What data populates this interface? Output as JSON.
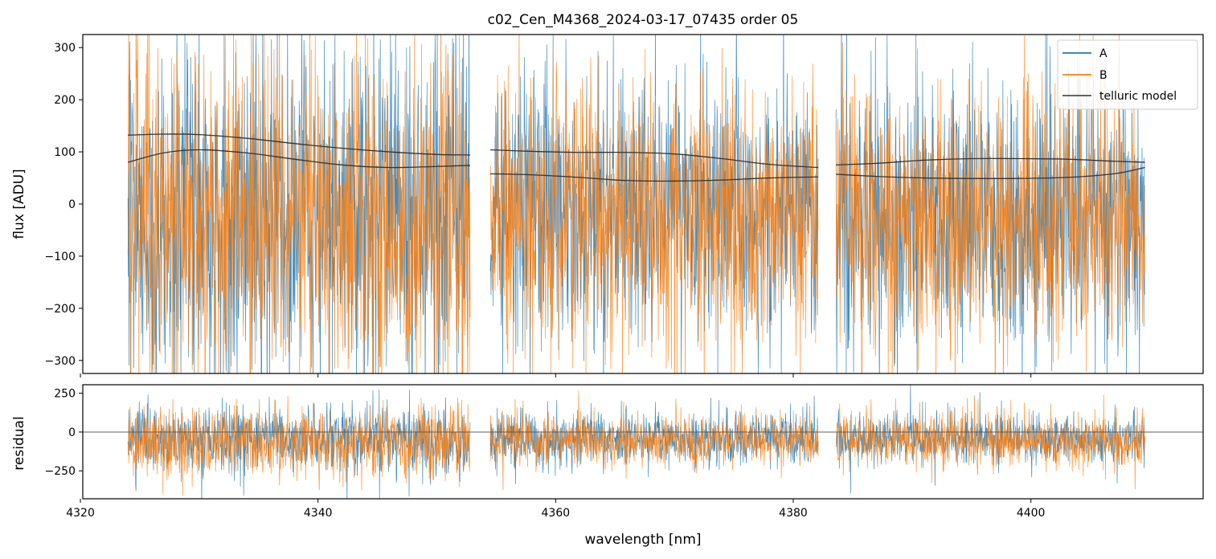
{
  "chart_data": [
    {
      "type": "line",
      "panel": "main",
      "title": "c02_Cen_M4368_2024-03-17_07435  order 05",
      "xlabel": "",
      "ylabel": "flux [ADU]",
      "xlim": [
        4320.2,
        4414.5
      ],
      "ylim": [
        -325,
        325
      ],
      "yticks": [
        -300,
        -200,
        -100,
        0,
        100,
        200,
        300
      ],
      "ytick_labels": [
        "−300",
        "−200",
        "−100",
        "0",
        "100",
        "200",
        "300"
      ],
      "xticks": [
        4320,
        4340,
        4360,
        4380,
        4400
      ],
      "segments": [
        {
          "x_start": 4324.0,
          "x_end": 4352.8
        },
        {
          "x_start": 4354.5,
          "x_end": 4382.1
        },
        {
          "x_start": 4383.6,
          "x_end": 4409.6
        }
      ],
      "series": [
        {
          "name": "A",
          "color": "#1f77b4",
          "kind": "noisy spectrum",
          "center": -20,
          "amplitude": 300
        },
        {
          "name": "B",
          "color": "#ff7f0e",
          "kind": "noisy spectrum",
          "center": -25,
          "amplitude": 290
        },
        {
          "name": "telluric model",
          "color": "#333333",
          "curves": [
            {
              "x": [
                4324.0,
                4327,
                4330,
                4334,
                4338,
                4342,
                4346,
                4350,
                4352.8
              ],
              "y": [
                132,
                134,
                133,
                126,
                116,
                107,
                100,
                95,
                94
              ]
            },
            {
              "x": [
                4324.0,
                4327,
                4330,
                4334,
                4338,
                4342,
                4346,
                4350,
                4352.8
              ],
              "y": [
                80,
                98,
                104,
                98,
                86,
                75,
                70,
                72,
                74
              ]
            },
            {
              "x": [
                4354.5,
                4358,
                4362,
                4366,
                4370,
                4374,
                4378,
                4382.1
              ],
              "y": [
                104,
                101,
                99,
                99,
                96,
                87,
                76,
                70
              ]
            },
            {
              "x": [
                4354.5,
                4358,
                4362,
                4366,
                4370,
                4374,
                4378,
                4382.1
              ],
              "y": [
                58,
                56,
                51,
                45,
                44,
                46,
                50,
                52
              ]
            },
            {
              "x": [
                4383.6,
                4387,
                4391,
                4395,
                4399,
                4403,
                4407,
                4409.6
              ],
              "y": [
                75,
                78,
                84,
                87,
                87,
                86,
                82,
                80
              ]
            },
            {
              "x": [
                4383.6,
                4387,
                4391,
                4395,
                4399,
                4403,
                4407,
                4409.6
              ],
              "y": [
                57,
                53,
                50,
                49,
                49,
                51,
                58,
                70
              ]
            }
          ]
        }
      ],
      "legend": {
        "placement": "top-right",
        "entries": [
          "A",
          "B",
          "telluric model"
        ]
      }
    },
    {
      "type": "line",
      "panel": "residual",
      "xlabel": "wavelength [nm]",
      "ylabel": "residual",
      "xlim": [
        4320.2,
        4414.5
      ],
      "ylim": [
        -430,
        305
      ],
      "yticks": [
        -250,
        0,
        250
      ],
      "ytick_labels": [
        "−250",
        "0",
        "250"
      ],
      "xticks": [
        4320,
        4340,
        4360,
        4380,
        4400
      ],
      "xtick_labels": [
        "4320",
        "4340",
        "4360",
        "4380",
        "4400"
      ],
      "zero_line": 0,
      "series": [
        {
          "name": "A",
          "color": "#1f77b4",
          "center": -45,
          "amplitude": 190
        },
        {
          "name": "B",
          "color": "#ff7f0e",
          "center": -60,
          "amplitude": 200
        }
      ]
    }
  ]
}
